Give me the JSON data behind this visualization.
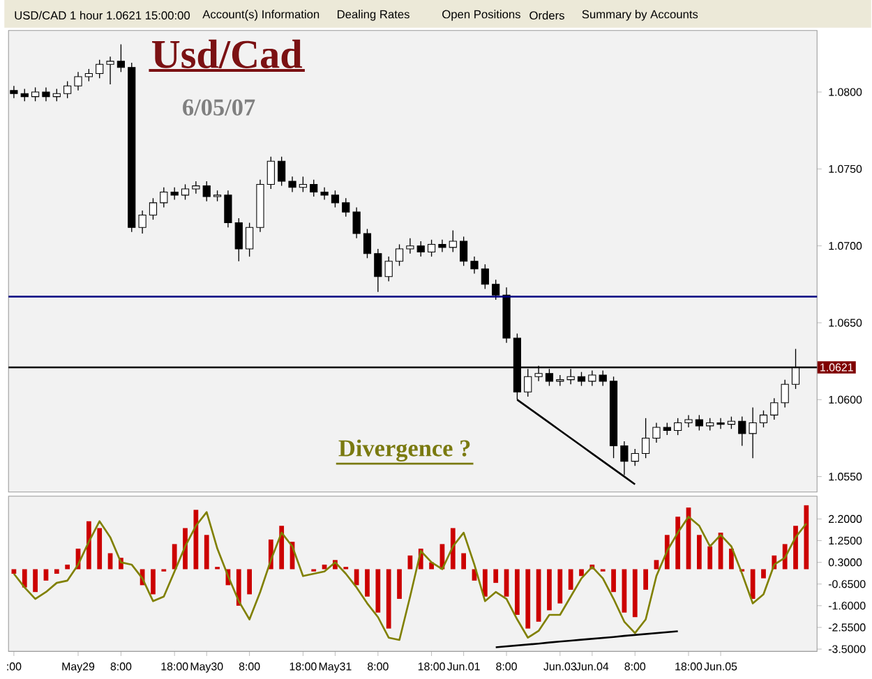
{
  "chart_data": [
    {
      "type": "candlestick",
      "title": "Usd/Cad",
      "subtitle": "6/05/07",
      "annotations": [
        "USD/CAD 1 hour 1.0621 15:00:00",
        "Account(s) Information",
        "Dealing Rates",
        "Open Positions",
        "Orders",
        "Summary by Accounts",
        "Divergence ?"
      ],
      "categories": [
        null,
        null,
        null,
        null,
        null,
        null,
        null,
        null,
        null,
        null,
        null,
        null,
        null,
        null,
        null,
        null,
        null,
        null,
        null,
        null,
        null,
        null,
        null,
        null,
        null,
        null,
        null,
        null,
        null,
        null,
        null,
        null,
        null,
        null,
        null,
        null,
        null,
        null,
        null,
        null,
        null,
        null,
        null,
        null,
        null,
        null,
        null,
        null,
        null,
        null,
        null,
        null,
        null,
        null,
        null,
        null,
        null,
        null,
        null,
        null,
        null,
        null,
        null,
        null,
        null,
        null,
        null,
        null,
        null,
        null,
        null,
        null,
        null,
        null
      ],
      "ohlc": [
        [
          1.0801,
          1.0804,
          1.0796,
          1.0799
        ],
        [
          1.0799,
          1.0802,
          1.0794,
          1.0797
        ],
        [
          1.0797,
          1.0803,
          1.0794,
          1.08
        ],
        [
          1.08,
          1.0803,
          1.0794,
          1.0797
        ],
        [
          1.0797,
          1.0802,
          1.0794,
          1.0799
        ],
        [
          1.0799,
          1.0807,
          1.0796,
          1.0804
        ],
        [
          1.0804,
          1.0813,
          1.0801,
          1.081
        ],
        [
          1.081,
          1.0815,
          1.0807,
          1.0812
        ],
        [
          1.0812,
          1.0821,
          1.0809,
          1.0818
        ],
        [
          1.0818,
          1.0823,
          1.0805,
          1.082
        ],
        [
          1.082,
          1.0831,
          1.0813,
          1.0816
        ],
        [
          1.0816,
          1.0819,
          1.0709,
          1.0712
        ],
        [
          1.0712,
          1.0723,
          1.0708,
          1.072
        ],
        [
          1.072,
          1.0731,
          1.0717,
          1.0728
        ],
        [
          1.0728,
          1.0738,
          1.0725,
          1.0735
        ],
        [
          1.0735,
          1.0738,
          1.073,
          1.0733
        ],
        [
          1.0733,
          1.074,
          1.073,
          1.0737
        ],
        [
          1.0737,
          1.0742,
          1.0734,
          1.0739
        ],
        [
          1.0739,
          1.0742,
          1.0729,
          1.0732
        ],
        [
          1.0732,
          1.0736,
          1.0729,
          1.0733
        ],
        [
          1.0733,
          1.0736,
          1.0712,
          1.0715
        ],
        [
          1.0715,
          1.0718,
          1.069,
          1.0698
        ],
        [
          1.0698,
          1.0715,
          1.0693,
          1.0712
        ],
        [
          1.0712,
          1.0743,
          1.0709,
          1.074
        ],
        [
          1.074,
          1.0758,
          1.0737,
          1.0755
        ],
        [
          1.0755,
          1.0758,
          1.0739,
          1.0742
        ],
        [
          1.0742,
          1.0745,
          1.0735,
          1.0738
        ],
        [
          1.0738,
          1.0745,
          1.0735,
          1.074
        ],
        [
          1.074,
          1.0743,
          1.0732,
          1.0735
        ],
        [
          1.0735,
          1.0738,
          1.073,
          1.0733
        ],
        [
          1.0733,
          1.0736,
          1.0725,
          1.0728
        ],
        [
          1.0728,
          1.0731,
          1.0719,
          1.0722
        ],
        [
          1.0722,
          1.0725,
          1.0705,
          1.0708
        ],
        [
          1.0708,
          1.0711,
          1.0692,
          1.0695
        ],
        [
          1.0695,
          1.0698,
          1.067,
          1.068
        ],
        [
          1.068,
          1.0693,
          1.0677,
          1.069
        ],
        [
          1.069,
          1.0701,
          1.0687,
          1.0698
        ],
        [
          1.0698,
          1.0705,
          1.0695,
          1.07
        ],
        [
          1.07,
          1.0703,
          1.0693,
          1.0696
        ],
        [
          1.0696,
          1.0704,
          1.0693,
          1.0701
        ],
        [
          1.0701,
          1.0704,
          1.0696,
          1.0699
        ],
        [
          1.0699,
          1.071,
          1.0696,
          1.0703
        ],
        [
          1.0703,
          1.0706,
          1.0687,
          1.069
        ],
        [
          1.069,
          1.0693,
          1.0682,
          1.0685
        ],
        [
          1.0685,
          1.0688,
          1.0672,
          1.0675
        ],
        [
          1.0675,
          1.0678,
          1.0665,
          1.0668
        ],
        [
          1.0668,
          1.0673,
          1.0637,
          1.064
        ],
        [
          1.064,
          1.0643,
          1.06,
          1.0605
        ],
        [
          1.0605,
          1.062,
          1.0602,
          1.0615
        ],
        [
          1.0615,
          1.0622,
          1.0612,
          1.0617
        ],
        [
          1.0617,
          1.062,
          1.0609,
          1.0612
        ],
        [
          1.0612,
          1.0616,
          1.0609,
          1.0613
        ],
        [
          1.0613,
          1.062,
          1.061,
          1.0615
        ],
        [
          1.0615,
          1.0618,
          1.0609,
          1.0612
        ],
        [
          1.0612,
          1.0619,
          1.0609,
          1.0616
        ],
        [
          1.0616,
          1.0619,
          1.0609,
          1.0612
        ],
        [
          1.0612,
          1.0615,
          1.0562,
          1.057
        ],
        [
          1.057,
          1.0573,
          1.0551,
          1.056
        ],
        [
          1.056,
          1.0568,
          1.0557,
          1.0565
        ],
        [
          1.0565,
          1.0588,
          1.0562,
          1.0575
        ],
        [
          1.0575,
          1.0585,
          1.0572,
          1.0582
        ],
        [
          1.0582,
          1.0585,
          1.0577,
          1.058
        ],
        [
          1.058,
          1.0588,
          1.0577,
          1.0585
        ],
        [
          1.0585,
          1.059,
          1.0582,
          1.0587
        ],
        [
          1.0587,
          1.059,
          1.058,
          1.0583
        ],
        [
          1.0583,
          1.0588,
          1.058,
          1.0585
        ],
        [
          1.0585,
          1.0588,
          1.0581,
          1.0584
        ],
        [
          1.0584,
          1.0589,
          1.0581,
          1.0586
        ],
        [
          1.0586,
          1.0589,
          1.057,
          1.0578
        ],
        [
          1.0578,
          1.0595,
          1.0562,
          1.0585
        ],
        [
          1.0585,
          1.0593,
          1.0582,
          1.059
        ],
        [
          1.059,
          1.0601,
          1.0587,
          1.0598
        ],
        [
          1.0598,
          1.0613,
          1.0595,
          1.061
        ],
        [
          1.061,
          1.0633,
          1.0607,
          1.0621
        ]
      ],
      "series": [
        {
          "type": "line",
          "color": "#000000",
          "values": [
            null,
            null,
            null,
            null,
            null,
            null,
            null,
            null,
            null,
            null,
            null,
            null,
            null,
            null,
            null,
            null,
            null,
            null,
            null,
            null,
            null,
            null,
            null,
            null,
            null,
            null,
            null,
            null,
            null,
            null,
            null,
            null,
            null,
            null,
            null,
            null,
            null,
            null,
            null,
            null,
            null,
            null,
            null,
            null,
            null,
            null,
            null,
            1.06,
            1.0595,
            1.059,
            1.0585,
            1.058,
            1.0575,
            1.057,
            1.0565,
            1.056,
            1.0555,
            1.055,
            1.0545,
            null,
            null,
            null,
            null,
            null,
            null,
            null,
            null,
            null,
            null,
            null,
            null,
            null,
            null,
            null
          ]
        }
      ],
      "ylim": [
        1.054,
        1.084
      ],
      "yticks": [
        {
          "value": 1.055,
          "label": "1.0550"
        },
        {
          "value": 1.06,
          "label": "1.0600"
        },
        {
          "value": 1.065,
          "label": "1.0650"
        },
        {
          "value": 1.07,
          "label": "1.0700"
        },
        {
          "value": 1.075,
          "label": "1.0750"
        },
        {
          "value": 1.08,
          "label": "1.0800"
        }
      ],
      "ref_lines": [
        {
          "axis": "y",
          "value": 1.0667,
          "color": "#000080"
        },
        {
          "axis": "y",
          "value": 1.0621,
          "label": "1.0621",
          "color": "#000000"
        }
      ],
      "tick_labels": "y"
    },
    {
      "type": "bar",
      "categories": [
        ":00",
        null,
        null,
        null,
        null,
        null,
        "May29",
        null,
        null,
        null,
        "8:00",
        null,
        null,
        null,
        null,
        "18:00",
        null,
        null,
        "May30",
        null,
        null,
        null,
        "8:00",
        null,
        null,
        null,
        null,
        "18:00",
        null,
        null,
        "May31",
        null,
        null,
        null,
        "8:00",
        null,
        null,
        null,
        null,
        "18:00",
        null,
        null,
        "Jun.01",
        null,
        null,
        null,
        "8:00",
        null,
        null,
        null,
        null,
        "Jun.03",
        null,
        null,
        "Jun.04",
        null,
        null,
        null,
        "8:00",
        null,
        null,
        null,
        null,
        "18:00",
        null,
        null,
        "Jun.05",
        null,
        null,
        null,
        null,
        null,
        null,
        null,
        null
      ],
      "series": [
        {
          "type": "bar",
          "color": "#cc0000",
          "values": [
            -0.2,
            -0.8,
            -1.0,
            -0.5,
            -0.2,
            0.2,
            0.9,
            2.1,
            1.8,
            0.7,
            0.5,
            0.0,
            -0.7,
            -1.1,
            -0.1,
            1.1,
            1.8,
            2.6,
            1.5,
            0.1,
            -0.7,
            -1.6,
            -1.1,
            0.0,
            1.3,
            1.9,
            1.2,
            0.0,
            -0.1,
            0.2,
            0.4,
            0.1,
            -0.7,
            -1.2,
            -1.9,
            -2.6,
            -1.3,
            0.6,
            0.9,
            0.3,
            1.1,
            1.8,
            0.7,
            -0.5,
            -1.2,
            -0.6,
            -1.2,
            -2.0,
            -2.6,
            -2.3,
            -1.8,
            -1.5,
            -0.9,
            -0.3,
            0.2,
            -0.1,
            -1.0,
            -1.9,
            -2.1,
            -0.9,
            0.4,
            1.5,
            2.3,
            2.7,
            1.5,
            1.0,
            1.6,
            0.9,
            -0.1,
            -1.3,
            -0.4,
            0.6,
            1.1,
            1.9,
            2.8
          ]
        },
        {
          "type": "line",
          "color": "#808000",
          "values": [
            -0.2,
            -0.8,
            -1.3,
            -1.0,
            -0.6,
            -0.5,
            0.2,
            1.2,
            2.1,
            1.4,
            0.3,
            0.2,
            -0.4,
            -1.4,
            -1.2,
            -0.1,
            1.0,
            1.9,
            2.5,
            0.9,
            -0.3,
            -1.4,
            -2.2,
            -1.0,
            0.4,
            1.6,
            1.0,
            -0.3,
            -0.2,
            -0.1,
            0.3,
            -0.2,
            -0.8,
            -1.5,
            -2.1,
            -3.0,
            -3.1,
            -1.2,
            0.8,
            0.3,
            0.0,
            1.0,
            1.6,
            0.2,
            -1.4,
            -1.0,
            -1.3,
            -2.2,
            -3.0,
            -2.7,
            -2.0,
            -2.0,
            -1.2,
            -0.4,
            0.1,
            -0.4,
            -1.3,
            -2.3,
            -2.8,
            -2.2,
            -0.3,
            0.8,
            1.6,
            2.3,
            1.9,
            1.0,
            1.5,
            1.0,
            -0.2,
            -1.5,
            -1.1,
            0.2,
            0.5,
            1.4,
            2.0
          ]
        },
        {
          "type": "line",
          "color": "#000000",
          "values": [
            null,
            null,
            null,
            null,
            null,
            null,
            null,
            null,
            null,
            null,
            null,
            null,
            null,
            null,
            null,
            null,
            null,
            null,
            null,
            null,
            null,
            null,
            null,
            null,
            null,
            null,
            null,
            null,
            null,
            null,
            null,
            null,
            null,
            null,
            null,
            null,
            null,
            null,
            null,
            null,
            null,
            null,
            null,
            null,
            null,
            -3.42,
            -3.38,
            -3.34,
            -3.3,
            -3.26,
            -3.21,
            -3.17,
            -3.13,
            -3.09,
            -3.05,
            -3.01,
            -2.97,
            -2.92,
            -2.88,
            -2.84,
            -2.8,
            -2.76,
            -2.72,
            null,
            null,
            null,
            null,
            null,
            null,
            null,
            null,
            null,
            null,
            null,
            null
          ]
        }
      ],
      "ylim": [
        -3.6,
        3.2
      ],
      "yticks": [
        {
          "value": 2.2,
          "label": "2.2000"
        },
        {
          "value": 1.25,
          "label": "1.2500"
        },
        {
          "value": 0.3,
          "label": "0.3000"
        },
        {
          "value": -0.65,
          "label": "-0.6500"
        },
        {
          "value": -1.6,
          "label": "-1.6000"
        },
        {
          "value": -2.55,
          "label": "-2.5500"
        },
        {
          "value": -3.5,
          "label": "-3.5000"
        }
      ]
    }
  ]
}
